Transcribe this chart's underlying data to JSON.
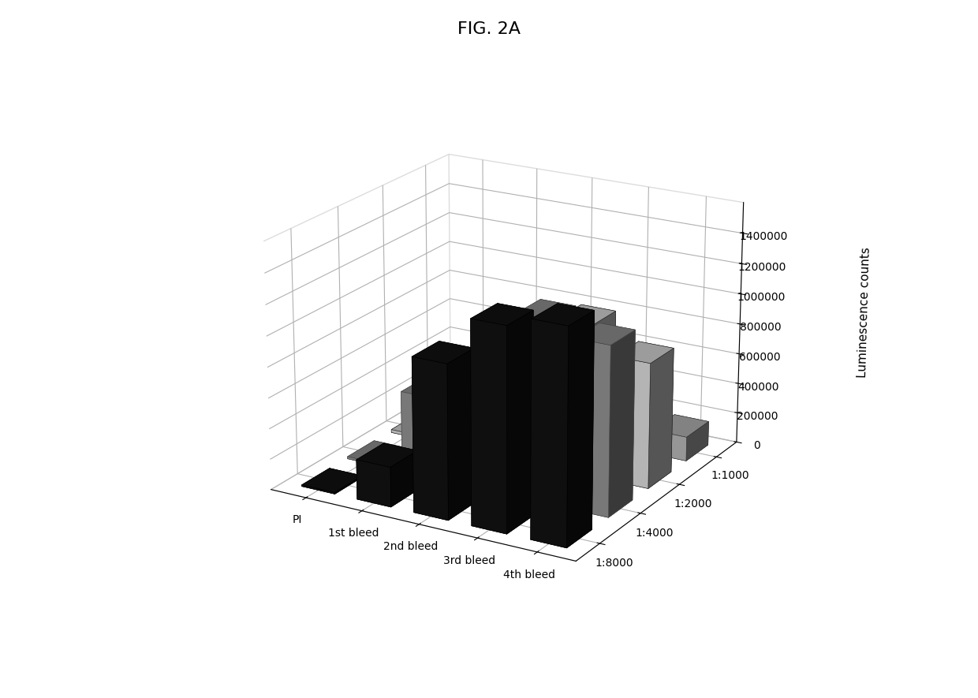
{
  "title": "FIG. 2A",
  "ylabel": "Luminescence counts",
  "x_labels": [
    "PI",
    "1st bleed",
    "2nd bleed",
    "3rd bleed",
    "4th bleed"
  ],
  "z_labels": [
    "1:1000",
    "1:2000",
    "1:4000",
    "1:8000"
  ],
  "values": [
    [
      30000,
      50000,
      200000,
      170000,
      160000
    ],
    [
      20000,
      175000,
      560000,
      990000,
      820000
    ],
    [
      15000,
      530000,
      800000,
      1180000,
      1100000
    ],
    [
      10000,
      260000,
      1000000,
      1310000,
      1380000
    ]
  ],
  "face_colors": [
    "#aaaaaa",
    "#bbbbbb",
    "#999999",
    "#111111"
  ],
  "edge_colors": [
    "#333333",
    "#222222",
    "#444444",
    "#000000"
  ],
  "hatch_patterns": [
    "--",
    "||",
    "",
    ""
  ],
  "background_color": "#ffffff",
  "title_fontsize": 16,
  "axis_fontsize": 11,
  "ylim": [
    0,
    1600000
  ],
  "yticks": [
    0,
    200000,
    400000,
    600000,
    800000,
    1000000,
    1200000,
    1400000
  ],
  "elev": 20,
  "azim": -60,
  "bar_width": 0.6,
  "bar_depth": 0.6
}
